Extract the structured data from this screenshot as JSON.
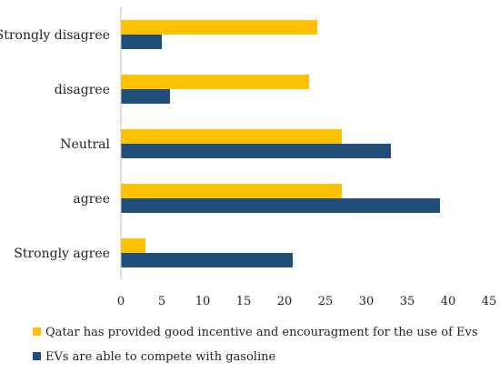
{
  "chart_data": {
    "type": "bar",
    "orientation": "horizontal",
    "title": "",
    "xlabel": "",
    "ylabel": "",
    "categories": [
      "Strongly disagree",
      "disagree",
      "Neutral",
      "agree",
      "Strongly agree"
    ],
    "series": [
      {
        "name": "Qatar has provided good incentive and encouragment for the use of Evs",
        "color": "#ffc000",
        "values": [
          24,
          23,
          27,
          27,
          3
        ]
      },
      {
        "name": "EVs are able to compete with gasoline",
        "color": "#1f4e79",
        "values": [
          5,
          6,
          33,
          39,
          21
        ]
      }
    ],
    "xlim": [
      0,
      45
    ],
    "xticks": [
      "0",
      "5",
      "10",
      "15",
      "20",
      "25",
      "30",
      "35",
      "40",
      "45"
    ],
    "grid": false,
    "legend_position": "bottom"
  }
}
